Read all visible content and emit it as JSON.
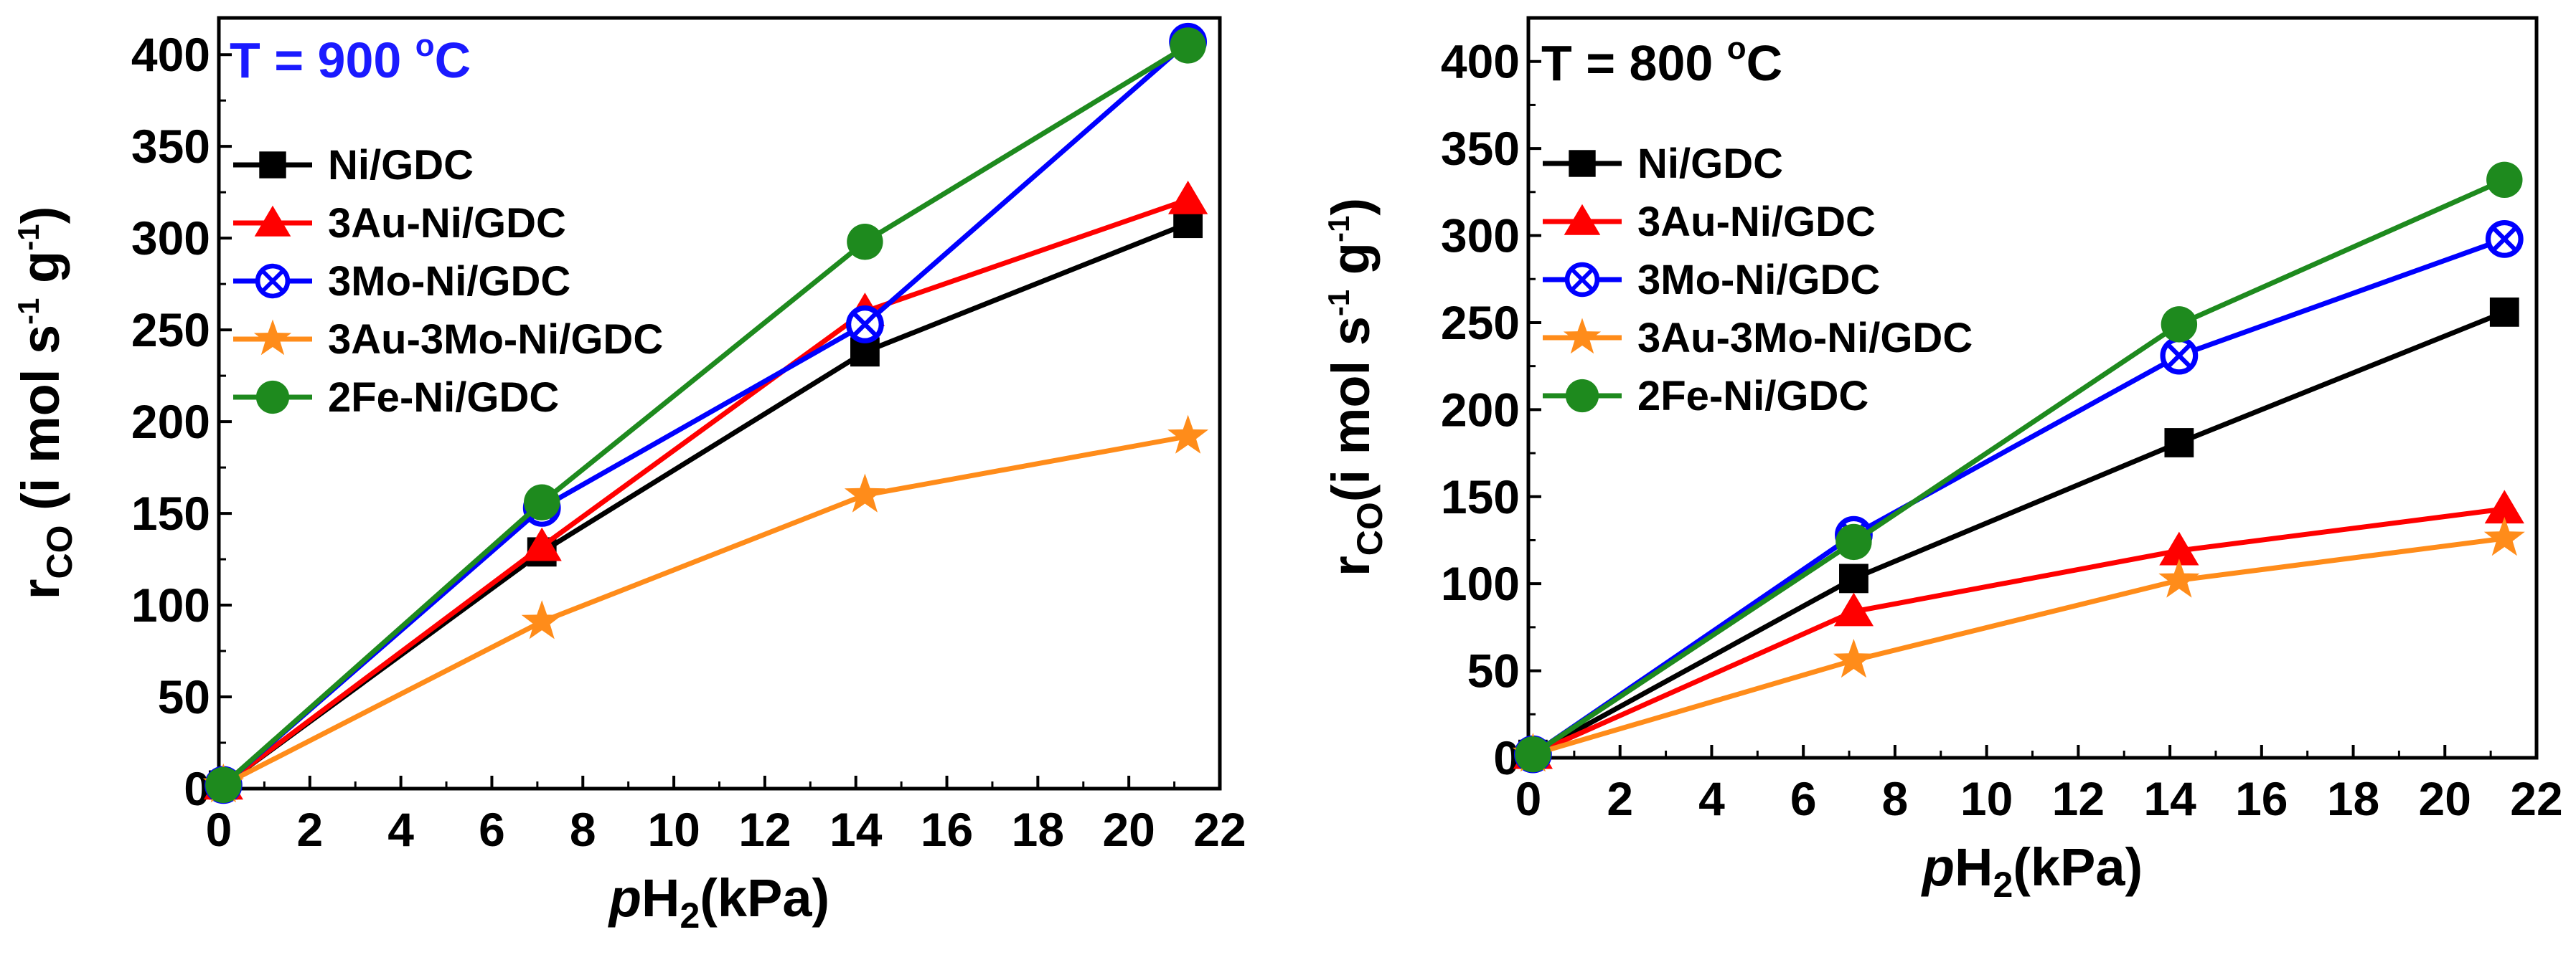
{
  "chart_data": [
    {
      "type": "line",
      "title": "T = 900 °C",
      "title_parts": {
        "prefix": "T = 900 ",
        "superscript": "o",
        "suffix": "C"
      },
      "title_color": "#1a1aff",
      "xlabel": "pH2(kPa)",
      "xlabel_parts": {
        "italic": "p",
        "main": "H",
        "subscript": "2",
        "suffix": "(kPa)"
      },
      "ylabel": "rCO (i mol s-1 g-1)",
      "ylabel_parts": {
        "r": "r",
        "sub": "CO",
        "body1": " (i mol s",
        "sup1": "-1",
        "body2": " g",
        "sup2": "-1",
        "close": ")"
      },
      "xlim": [
        0,
        22
      ],
      "ylim": [
        0,
        420
      ],
      "xticks": [
        "0",
        "2",
        "4",
        "6",
        "8",
        "10",
        "12",
        "14",
        "16",
        "18",
        "20",
        "22"
      ],
      "yticks": [
        "0",
        "50",
        "100",
        "150",
        "200",
        "250",
        "300",
        "350",
        "400"
      ],
      "x": [
        0.1,
        7.1,
        14.2,
        21.3
      ],
      "legend_location": "upper-left",
      "series": [
        {
          "name": "Ni/GDC",
          "color": "#000000",
          "marker": "square",
          "values": [
            2,
            129,
            238,
            308
          ]
        },
        {
          "name": "3Au-Ni/GDC",
          "color": "#ff0000",
          "marker": "triangle",
          "values": [
            2,
            132,
            260,
            321
          ]
        },
        {
          "name": "3Mo-Ni/GDC",
          "color": "#0000ff",
          "marker": "crossed-circle",
          "values": [
            2,
            153,
            253,
            407
          ]
        },
        {
          "name": "3Au-3Mo-Ni/GDC",
          "color": "#ff8c1a",
          "marker": "star",
          "values": [
            2,
            91,
            160,
            192
          ]
        },
        {
          "name": "2Fe-Ni/GDC",
          "color": "#1e8a1e",
          "marker": "circle",
          "values": [
            2,
            156,
            298,
            405
          ]
        }
      ]
    },
    {
      "type": "line",
      "title": "T = 800 °C",
      "title_parts": {
        "prefix": "T = 800 ",
        "superscript": "o",
        "suffix": "C"
      },
      "title_color": "#000000",
      "xlabel": "pH2(kPa)",
      "xlabel_parts": {
        "italic": "p",
        "main": "H",
        "subscript": "2",
        "suffix": "(kPa)"
      },
      "ylabel": "rCO(i mol s-1 g-1)",
      "ylabel_parts": {
        "r": "r",
        "sub": "CO",
        "body1": "(i mol s",
        "sup1": "-1",
        "body2": " g",
        "sup2": "-1",
        "close": ")"
      },
      "xlim": [
        0,
        22
      ],
      "ylim": [
        0,
        425
      ],
      "xticks": [
        "0",
        "2",
        "4",
        "6",
        "8",
        "10",
        "12",
        "14",
        "16",
        "18",
        "20",
        "22"
      ],
      "yticks": [
        "0",
        "50",
        "100",
        "150",
        "200",
        "250",
        "300",
        "350",
        "400"
      ],
      "x": [
        0.1,
        7.1,
        14.2,
        21.3
      ],
      "legend_location": "upper-left",
      "series": [
        {
          "name": "Ni/GDC",
          "color": "#000000",
          "marker": "square",
          "values": [
            2,
            103,
            181,
            256
          ]
        },
        {
          "name": "3Au-Ni/GDC",
          "color": "#ff0000",
          "marker": "triangle",
          "values": [
            2,
            84,
            119,
            143
          ]
        },
        {
          "name": "3Mo-Ni/GDC",
          "color": "#0000ff",
          "marker": "crossed-circle",
          "values": [
            2,
            128,
            231,
            298
          ]
        },
        {
          "name": "3Au-3Mo-Ni/GDC",
          "color": "#ff8c1a",
          "marker": "star",
          "values": [
            2,
            56,
            102,
            126
          ]
        },
        {
          "name": "2Fe-Ni/GDC",
          "color": "#1e8a1e",
          "marker": "circle",
          "values": [
            2,
            124,
            249,
            332
          ]
        }
      ]
    }
  ]
}
